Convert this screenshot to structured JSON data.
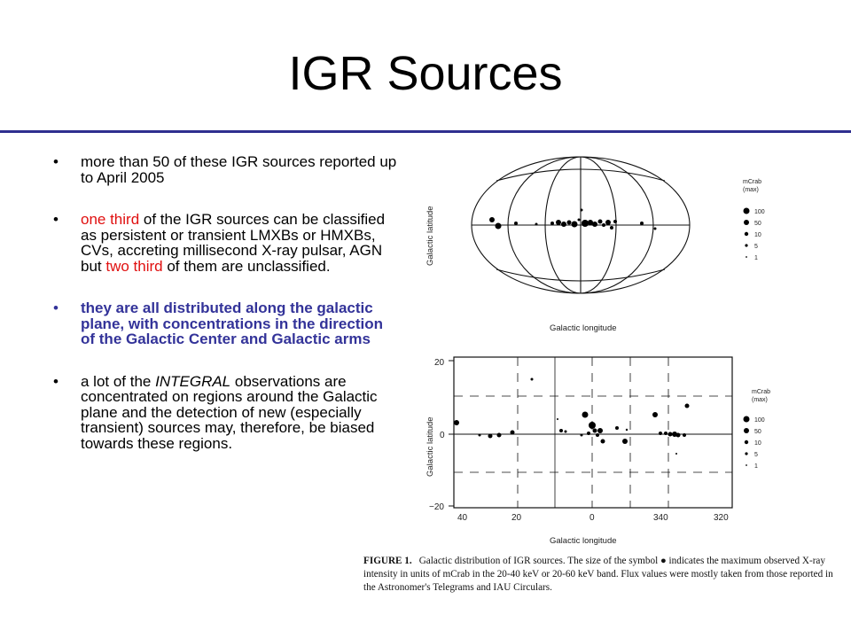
{
  "slide": {
    "title": "IGR Sources",
    "bullets": [
      {
        "text": "more than 50 of these IGR sources reported up to April 2005"
      },
      {
        "red1": "one third",
        "mid": " of the IGR sources can be classified as persistent or transient LMXBs or HMXBs, CVs, accreting millisecond X-ray pulsar, AGN but ",
        "red2": "two third",
        "tail": " of them are unclassified."
      },
      {
        "text": "they are all distributed along the galactic plane, with concentrations in the direction of the Galactic Center and Galactic arms"
      },
      {
        "a": "a lot of the ",
        "italic": "INTEGRAL",
        "b": " observations are concentrated on regions around the Galactic plane and the detection of new (especially transient) sources may, therefore, be biased towards these regions."
      }
    ],
    "bullet_symbol": "•"
  },
  "figure": {
    "top": {
      "ylabel": "Galactic latitude",
      "xlabel": "Galactic longitude",
      "legend_title": "mCrab",
      "legend_sub": "(max)",
      "legend_values": [
        "100",
        "50",
        "10",
        "5",
        "1"
      ]
    },
    "bottom": {
      "ylabel": "Galactic latitude",
      "xlabel": "Galactic longitude",
      "y_ticks": [
        "20",
        "0",
        "−20"
      ],
      "x_ticks": [
        "40",
        "20",
        "0",
        "340",
        "320"
      ],
      "legend_title": "mCrab",
      "legend_sub": "(max)",
      "legend_values": [
        "100",
        "50",
        "10",
        "5",
        "1"
      ]
    },
    "caption_label": "FIGURE 1.",
    "caption_text": "Galactic distribution of IGR sources. The size of the symbol ● indicates the maximum observed X-ray intensity in units of mCrab in the 20-40 keV or 20-60 keV band. Flux values were mostly taken from those reported in the Astronomer's Telegrams and IAU Circulars."
  }
}
